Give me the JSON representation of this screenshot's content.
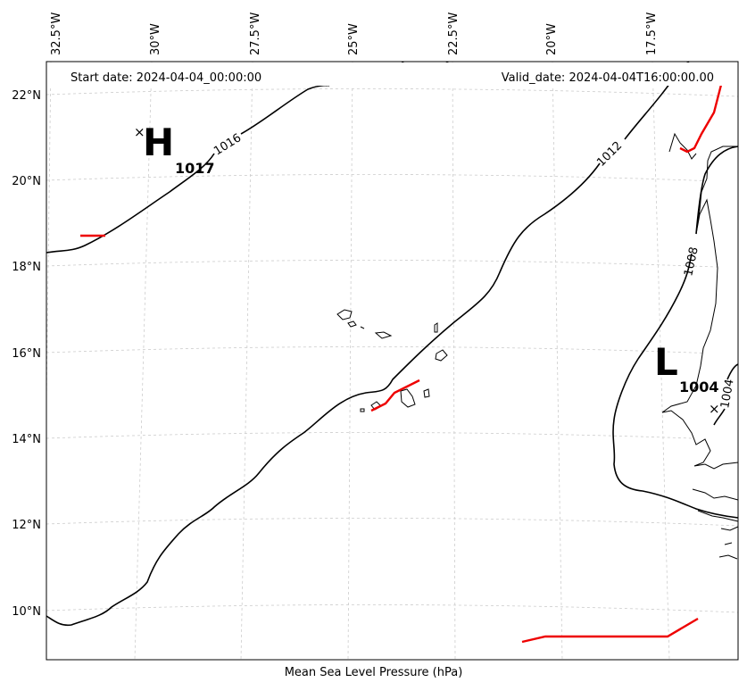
{
  "map": {
    "start_date": "Start date: 2024-04-04_00:00:00",
    "valid_date": "Valid_date: 2024-04-04T16:00:00.00",
    "caption": "Mean Sea Level Pressure (hPa)",
    "longitude_labels": [
      "32.5°W",
      "30°W",
      "27.5°W",
      "25°W",
      "22.5°W",
      "20°W",
      "17.5°W"
    ],
    "latitude_labels": [
      "22°N",
      "20°N",
      "18°N",
      "16°N",
      "14°N",
      "12°N",
      "10°N"
    ],
    "isobar_labels": [
      "1016",
      "1012",
      "1008",
      "1004"
    ],
    "pressure_centers": {
      "high": {
        "letter": "H",
        "value": "1017",
        "marker": "×"
      },
      "low": {
        "letter": "L",
        "value": "1004",
        "marker": "×"
      }
    },
    "colors": {
      "isobar": "#000000",
      "front": "#ee0000",
      "grid": "#cccccc",
      "frame": "#000000"
    }
  }
}
